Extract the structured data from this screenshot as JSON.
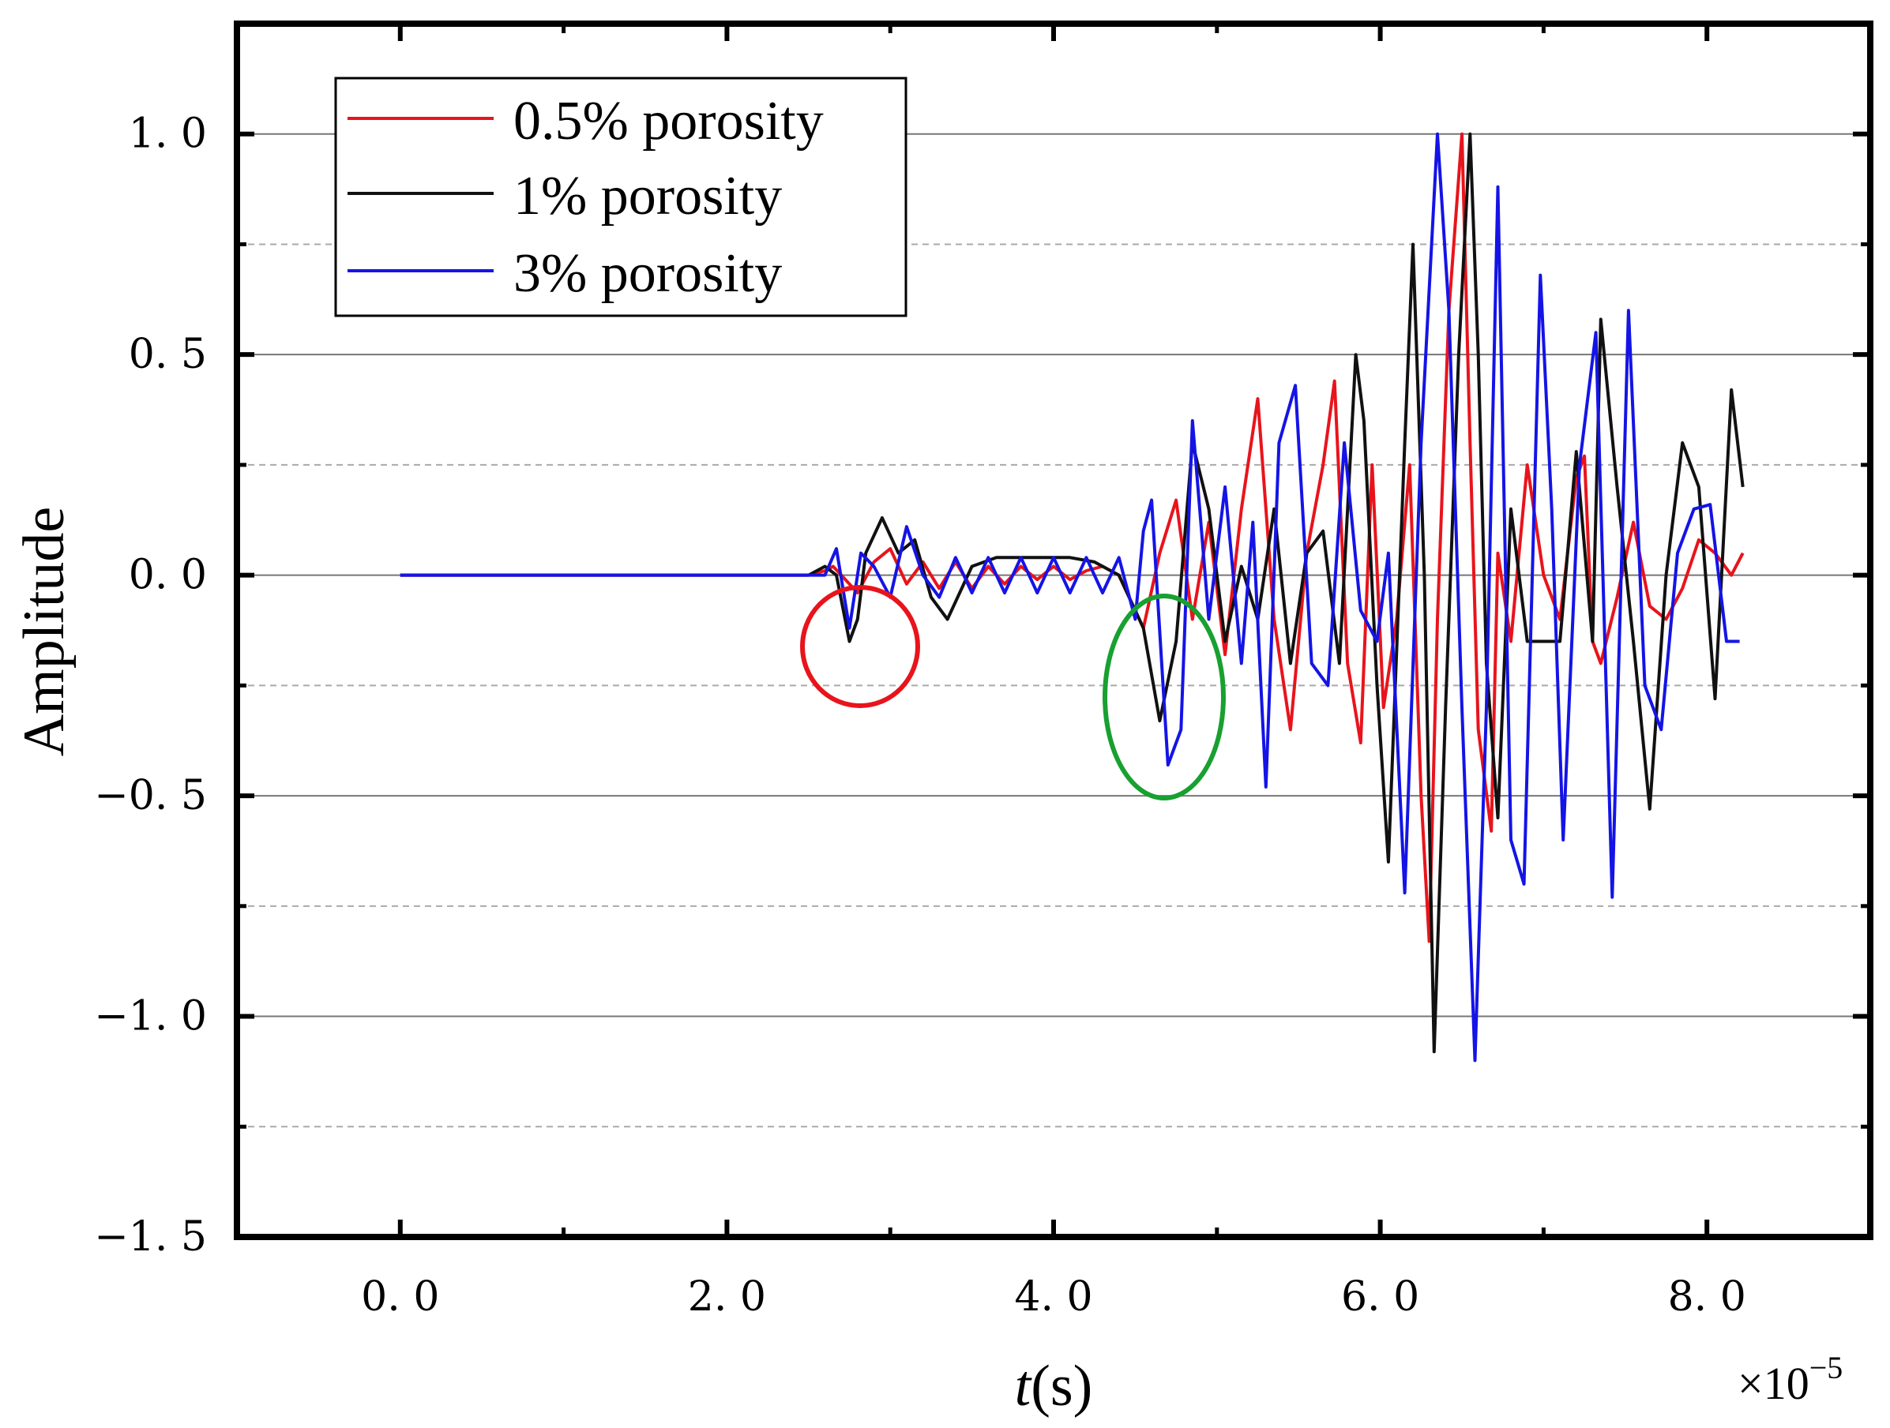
{
  "chart_data": {
    "type": "line",
    "title": "",
    "xlabel_italic": "t",
    "xlabel_unit": "(s)",
    "ylabel": "Amplitude",
    "x_multiplier": "×10",
    "x_multiplier_exp": "−5",
    "xlim": [
      -1.0,
      9.0
    ],
    "ylim": [
      -1.5,
      1.25
    ],
    "xticks": [
      0.0,
      2.0,
      4.0,
      6.0,
      8.0
    ],
    "xtick_labels": [
      "0. 0",
      "2. 0",
      "4. 0",
      "6. 0",
      "8. 0"
    ],
    "yticks": [
      -1.5,
      -1.0,
      -0.5,
      0.0,
      0.5,
      1.0
    ],
    "ytick_labels": [
      "−1. 5",
      "−1. 0",
      "−0. 5",
      "0. 0",
      "0. 5",
      "1. 0"
    ],
    "major_grid_y": [
      -1.0,
      -0.5,
      0.0,
      0.5,
      1.0
    ],
    "minor_grid_y": [
      -1.25,
      -0.75,
      -0.25,
      0.25,
      0.75
    ],
    "legend_position": "top-left",
    "series": [
      {
        "name": "0.5% porosity",
        "color": "#e8141c",
        "x": [
          0.0,
          2.5,
          2.6,
          2.65,
          2.7,
          2.8,
          2.9,
          3.0,
          3.1,
          3.2,
          3.3,
          3.4,
          3.5,
          3.6,
          3.7,
          3.8,
          3.9,
          4.0,
          4.1,
          4.2,
          4.3,
          4.4,
          4.5,
          4.55,
          4.65,
          4.75,
          4.85,
          4.95,
          5.05,
          5.15,
          5.25,
          5.35,
          5.45,
          5.55,
          5.65,
          5.72,
          5.8,
          5.88,
          5.95,
          6.02,
          6.1,
          6.18,
          6.25,
          6.3,
          6.35,
          6.42,
          6.5,
          6.55,
          6.6,
          6.68,
          6.72,
          6.8,
          6.9,
          7.0,
          7.1,
          7.2,
          7.25,
          7.3,
          7.35,
          7.45,
          7.55,
          7.65,
          7.75,
          7.85,
          7.95,
          8.05,
          8.15,
          8.22
        ],
        "y": [
          0.0,
          0.0,
          0.01,
          0.02,
          0.0,
          -0.04,
          0.03,
          0.06,
          -0.02,
          0.03,
          -0.03,
          0.03,
          -0.03,
          0.02,
          -0.02,
          0.02,
          -0.01,
          0.02,
          -0.01,
          0.01,
          0.02,
          0.0,
          -0.08,
          -0.12,
          0.05,
          0.17,
          -0.1,
          0.12,
          -0.18,
          0.15,
          0.4,
          -0.1,
          -0.35,
          0.05,
          0.25,
          0.44,
          -0.2,
          -0.38,
          0.25,
          -0.3,
          -0.1,
          0.25,
          -0.5,
          -0.83,
          -0.1,
          0.6,
          1.0,
          0.3,
          -0.35,
          -0.58,
          0.05,
          -0.15,
          0.25,
          0.0,
          -0.1,
          0.22,
          0.27,
          -0.15,
          -0.2,
          -0.05,
          0.12,
          -0.07,
          -0.1,
          -0.03,
          0.08,
          0.05,
          0.0,
          0.05
        ]
      },
      {
        "name": "1% porosity",
        "color": "#111111",
        "x": [
          0.0,
          2.5,
          2.6,
          2.67,
          2.75,
          2.8,
          2.85,
          2.95,
          3.05,
          3.15,
          3.25,
          3.35,
          3.5,
          3.65,
          3.8,
          3.95,
          4.1,
          4.25,
          4.4,
          4.55,
          4.65,
          4.75,
          4.85,
          4.95,
          5.05,
          5.15,
          5.25,
          5.35,
          5.45,
          5.55,
          5.65,
          5.75,
          5.85,
          5.9,
          5.98,
          6.05,
          6.15,
          6.2,
          6.27,
          6.33,
          6.4,
          6.48,
          6.55,
          6.6,
          6.65,
          6.72,
          6.8,
          6.9,
          7.0,
          7.1,
          7.2,
          7.3,
          7.35,
          7.45,
          7.55,
          7.65,
          7.75,
          7.85,
          7.95,
          8.05,
          8.15,
          8.22
        ],
        "y": [
          0.0,
          0.0,
          0.02,
          0.0,
          -0.15,
          -0.1,
          0.05,
          0.13,
          0.05,
          0.08,
          -0.05,
          -0.1,
          0.02,
          0.04,
          0.04,
          0.04,
          0.04,
          0.03,
          0.0,
          -0.12,
          -0.33,
          -0.15,
          0.3,
          0.15,
          -0.15,
          0.02,
          -0.1,
          0.15,
          -0.2,
          0.05,
          0.1,
          -0.2,
          0.5,
          0.35,
          -0.25,
          -0.65,
          0.3,
          0.75,
          0.0,
          -1.08,
          -0.3,
          0.5,
          1.0,
          0.5,
          -0.2,
          -0.55,
          0.15,
          -0.15,
          -0.15,
          -0.15,
          0.28,
          -0.15,
          0.58,
          0.2,
          -0.15,
          -0.53,
          0.0,
          0.3,
          0.2,
          -0.28,
          0.42,
          0.2
        ]
      },
      {
        "name": "3% porosity",
        "color": "#1414e6",
        "x": [
          0.0,
          2.5,
          2.6,
          2.67,
          2.75,
          2.82,
          2.9,
          3.0,
          3.1,
          3.2,
          3.3,
          3.4,
          3.5,
          3.6,
          3.7,
          3.8,
          3.9,
          4.0,
          4.1,
          4.2,
          4.3,
          4.4,
          4.5,
          4.55,
          4.6,
          4.7,
          4.78,
          4.85,
          4.95,
          5.05,
          5.15,
          5.22,
          5.3,
          5.38,
          5.48,
          5.58,
          5.68,
          5.78,
          5.88,
          5.98,
          6.05,
          6.15,
          6.25,
          6.35,
          6.42,
          6.5,
          6.58,
          6.65,
          6.72,
          6.8,
          6.88,
          6.98,
          7.05,
          7.12,
          7.22,
          7.32,
          7.42,
          7.52,
          7.62,
          7.72,
          7.82,
          7.92,
          8.02,
          8.12,
          8.2
        ],
        "y": [
          0.0,
          0.0,
          0.0,
          0.06,
          -0.12,
          0.05,
          0.02,
          -0.05,
          0.11,
          0.0,
          -0.05,
          0.04,
          -0.04,
          0.04,
          -0.04,
          0.04,
          -0.04,
          0.04,
          -0.04,
          0.04,
          -0.04,
          0.04,
          -0.1,
          0.1,
          0.17,
          -0.43,
          -0.35,
          0.35,
          -0.1,
          0.2,
          -0.2,
          0.12,
          -0.48,
          0.3,
          0.43,
          -0.2,
          -0.25,
          0.3,
          -0.08,
          -0.15,
          0.05,
          -0.72,
          0.3,
          1.0,
          0.6,
          -0.3,
          -1.1,
          -0.3,
          0.88,
          -0.6,
          -0.7,
          0.68,
          0.15,
          -0.6,
          0.25,
          0.55,
          -0.73,
          0.6,
          -0.25,
          -0.35,
          0.05,
          0.15,
          0.16,
          -0.15,
          -0.15
        ]
      }
    ]
  },
  "legend": {
    "items": [
      "0.5% porosity",
      "1% porosity",
      "3% porosity"
    ]
  }
}
